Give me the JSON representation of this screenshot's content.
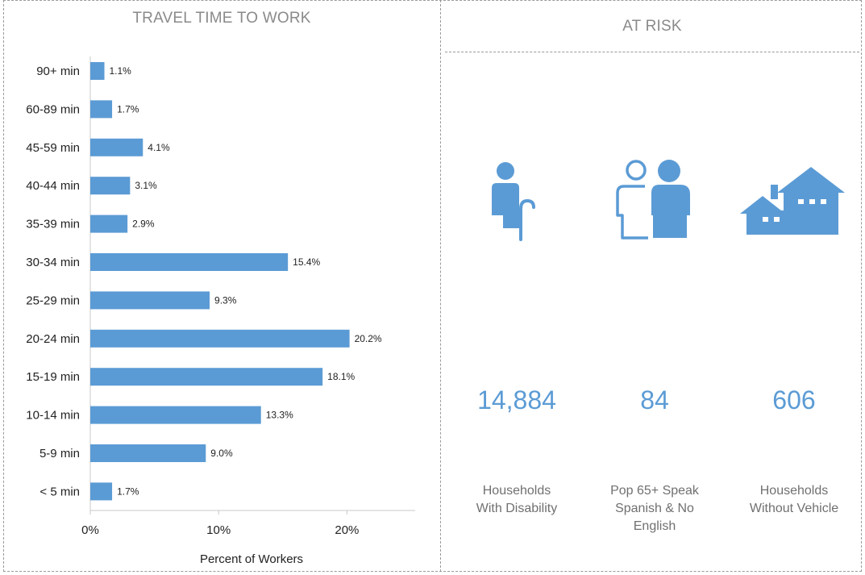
{
  "left_panel": {
    "title": "TRAVEL TIME TO WORK"
  },
  "right_panel": {
    "title": "AT RISK"
  },
  "colors": {
    "bar": "#5b9bd5",
    "metric": "#5b9bd5",
    "title": "#8a8a8a"
  },
  "chart_data": {
    "type": "bar",
    "orientation": "horizontal",
    "categories": [
      "90+ min",
      "60-89 min",
      "45-59 min",
      "40-44 min",
      "35-39 min",
      "30-34 min",
      "25-29 min",
      "20-24 min",
      "15-19 min",
      "10-14 min",
      "5-9 min",
      "< 5 min"
    ],
    "values": [
      1.1,
      1.7,
      4.1,
      3.1,
      2.9,
      15.4,
      9.3,
      20.2,
      18.1,
      13.3,
      9.0,
      1.7
    ],
    "value_labels": [
      "1.1%",
      "1.7%",
      "4.1%",
      "3.1%",
      "2.9%",
      "15.4%",
      "9.3%",
      "20.2%",
      "18.1%",
      "13.3%",
      "9.0%",
      "1.7%"
    ],
    "xlabel": "Percent of Workers",
    "xticks": [
      0,
      10,
      20
    ],
    "xtick_labels": [
      "0%",
      "10%",
      "20%"
    ],
    "xlim": [
      0,
      25
    ],
    "grid": false
  },
  "at_risk": [
    {
      "icon": "person-with-cane-icon",
      "value": "14,884",
      "label_lines": [
        "Households",
        "With Disability"
      ]
    },
    {
      "icon": "two-people-icon",
      "value": "84",
      "label_lines": [
        "Pop 65+ Speak",
        "Spanish & No",
        "English"
      ]
    },
    {
      "icon": "house-icon",
      "value": "606",
      "label_lines": [
        "Households",
        "Without Vehicle"
      ]
    }
  ]
}
